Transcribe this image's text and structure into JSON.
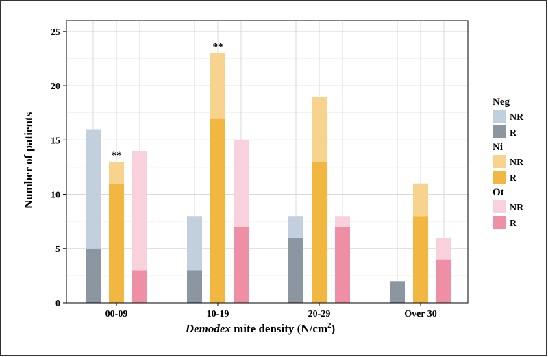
{
  "chart_data": {
    "type": "bar",
    "stacked": true,
    "categories": [
      "00-09",
      "10-19",
      "20-29",
      "Over 30"
    ],
    "groups": [
      "Neg",
      "Ni",
      "Ot"
    ],
    "series": [
      {
        "group": "Neg",
        "name": "R",
        "values": [
          5,
          3,
          6,
          2
        ]
      },
      {
        "group": "Neg",
        "name": "NR",
        "values": [
          11,
          5,
          2,
          0
        ]
      },
      {
        "group": "Ni",
        "name": "R",
        "values": [
          11,
          17,
          13,
          8
        ]
      },
      {
        "group": "Ni",
        "name": "NR",
        "values": [
          2,
          6,
          6,
          3
        ]
      },
      {
        "group": "Ot",
        "name": "R",
        "values": [
          3,
          7,
          7,
          4
        ]
      },
      {
        "group": "Ot",
        "name": "NR",
        "values": [
          11,
          8,
          1,
          2
        ]
      }
    ],
    "annotations": [
      {
        "text": "**",
        "category": "00-09",
        "group": "Ni"
      },
      {
        "text": "**",
        "category": "10-19",
        "group": "Ni"
      }
    ],
    "ylabel": "Number of patients",
    "xlabel_italic": "Demodex",
    "xlabel_rest": " mite density (N/cm",
    "xlabel_sup": "2",
    "xlabel_close": ")",
    "ylim": [
      0,
      26
    ],
    "yticks": [
      "0",
      "5",
      "10",
      "15",
      "20",
      "25"
    ],
    "grid": true,
    "legend_position": "right",
    "legend": [
      {
        "title": "Neg",
        "items": [
          {
            "label": "NR",
            "color": "#c2cfdf"
          },
          {
            "label": "R",
            "color": "#8b96a1"
          }
        ]
      },
      {
        "title": "Ni",
        "items": [
          {
            "label": "NR",
            "color": "#f8d38e"
          },
          {
            "label": "R",
            "color": "#f1b740"
          }
        ]
      },
      {
        "title": "Ot",
        "items": [
          {
            "label": "NR",
            "color": "#f9d1dc"
          },
          {
            "label": "R",
            "color": "#ef8fa6"
          }
        ]
      }
    ]
  }
}
